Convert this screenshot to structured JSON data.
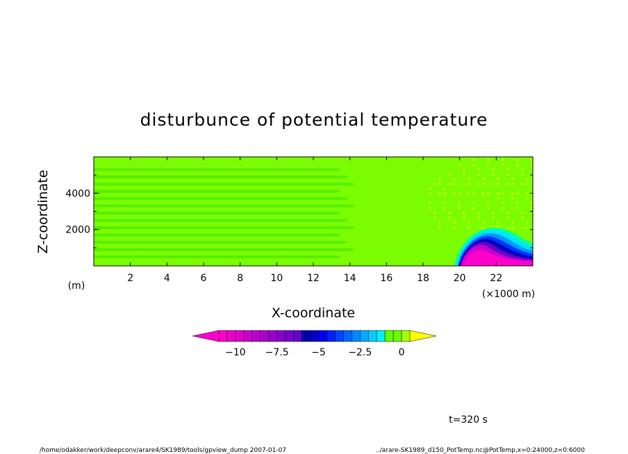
{
  "chart_data": {
    "type": "heatmap",
    "title": "disturbunce of potential temperature",
    "xlabel": "X-coordinate",
    "ylabel": "Z-coordinate",
    "x_unit": "(×1000 m)",
    "y_unit": "(m)",
    "xlim": [
      0,
      24
    ],
    "ylim": [
      0,
      6000
    ],
    "x_ticks": [
      "2",
      "4",
      "6",
      "8",
      "10",
      "12",
      "14",
      "16",
      "18",
      "20",
      "22"
    ],
    "y_ticks": [
      "2000",
      "4000"
    ],
    "colorbar": {
      "tick_labels": [
        "−10",
        "−7.5",
        "−5",
        "−2.5",
        "0"
      ],
      "tick_values": [
        -10,
        -7.5,
        -5,
        -2.5,
        0
      ],
      "min": -11,
      "max": 0.5,
      "step": 0.5,
      "extend": "both"
    },
    "features": [
      {
        "description": "cold pool",
        "x_range": [
          19.7,
          24
        ],
        "z_max": 2200,
        "min_value": -11
      }
    ],
    "time_label": "t=320 s"
  },
  "footer": {
    "left": "/home/odakker/work/deepconv/arare4/SK1989/tools/gpview_dump   2007-01-07",
    "right": "../arare-SK1989_d150_PotTemp.nc@PotTemp,x=0:24000,z=0:6000"
  },
  "colors": {
    "background": "#7cfc00",
    "band": "#55ee00",
    "zero_band": "#aaff00",
    "positive": "#ffff00",
    "strong_negative": "#ff00cc"
  }
}
